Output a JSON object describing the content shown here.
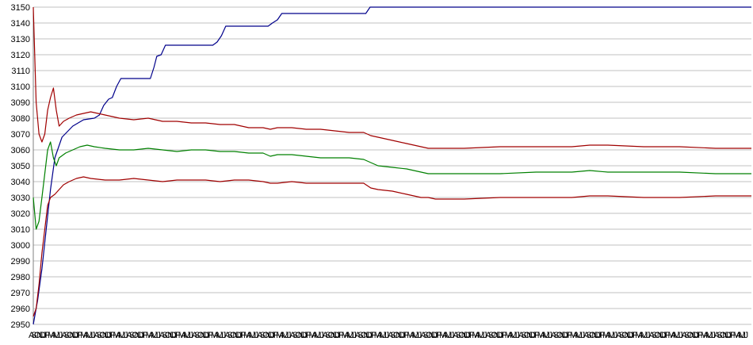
{
  "chart_data": {
    "type": "line",
    "title": "",
    "xlabel": "",
    "ylabel": "",
    "ylim": [
      2950,
      3150
    ],
    "y_ticks": [
      2950,
      2960,
      2970,
      2980,
      2990,
      3000,
      3010,
      3020,
      3030,
      3040,
      3050,
      3060,
      3070,
      3080,
      3090,
      3100,
      3110,
      3120,
      3130,
      3140,
      3150
    ],
    "grid": "horizontal",
    "legend": "none",
    "x_tick_labels": [
      "A",
      "S",
      "O",
      "N",
      "D",
      "J",
      "F",
      "M",
      "A",
      "M",
      "J",
      "J",
      "A",
      "S",
      "O",
      "N",
      "D",
      "J",
      "F",
      "M",
      "A",
      "M",
      "J",
      "J",
      "A",
      "S",
      "O",
      "N",
      "D",
      "J",
      "F",
      "M",
      "A",
      "M",
      "J",
      "J",
      "A",
      "S",
      "O",
      "N",
      "D",
      "J",
      "F",
      "M",
      "A",
      "M",
      "J",
      "J",
      "A",
      "S",
      "O",
      "N",
      "D",
      "J",
      "F",
      "M",
      "A",
      "M",
      "J",
      "J",
      "A",
      "S",
      "O",
      "N",
      "D",
      "J",
      "F",
      "M",
      "A",
      "M",
      "J",
      "J",
      "A",
      "S",
      "O",
      "N",
      "D",
      "J",
      "F",
      "M",
      "A",
      "M",
      "J",
      "J",
      "A",
      "S",
      "O",
      "N",
      "D",
      "J",
      "F",
      "M",
      "A",
      "M",
      "J",
      "J",
      "A",
      "S",
      "O",
      "N",
      "D",
      "J",
      "F",
      "M",
      "A",
      "M",
      "J",
      "J",
      "A",
      "S",
      "O",
      "N",
      "D",
      "J",
      "F",
      "M",
      "A",
      "M",
      "J",
      "J",
      "A",
      "S",
      "O",
      "N",
      "D",
      "J",
      "F",
      "M",
      "A",
      "M",
      "J",
      "J",
      "A",
      "S",
      "O",
      "N",
      "D",
      "J",
      "F",
      "M",
      "A",
      "M",
      "J",
      "J",
      "A",
      "S",
      "O",
      "N",
      "D",
      "J",
      "F",
      "M",
      "A",
      "M",
      "J",
      "J",
      "A",
      "S",
      "O",
      "N",
      "D",
      "J",
      "F",
      "M",
      "A",
      "M",
      "J",
      "J",
      "A",
      "S",
      "O",
      "N",
      "D",
      "J",
      "F",
      "M",
      "A",
      "M",
      "J",
      "J",
      "A",
      "S",
      "O",
      "N",
      "D",
      "J",
      "F",
      "M",
      "A",
      "M",
      "J",
      "J",
      "A",
      "S",
      "O",
      "N",
      "D",
      "J",
      "F",
      "M",
      "A",
      "M",
      "J",
      "J",
      "A",
      "S",
      "O",
      "N",
      "D",
      "J",
      "F",
      "M",
      "A",
      "M",
      "J",
      "J",
      "A",
      "S",
      "O",
      "N",
      "D",
      "J",
      "F",
      "M",
      "A",
      "M",
      "J",
      "J",
      "A",
      "S",
      "O",
      "N",
      "D",
      "J",
      "F",
      "M",
      "A",
      "M",
      "J",
      "J",
      "A",
      "S",
      "O",
      "N",
      "D",
      "J",
      "F",
      "M",
      "A",
      "M",
      "J",
      "J",
      "A",
      "S",
      "O",
      "N",
      "D",
      "J",
      "F",
      "M",
      "A",
      "M",
      "J",
      "J"
    ],
    "x_range": [
      0,
      100
    ],
    "series": [
      {
        "color": "#00008b",
        "points": [
          [
            0,
            2950
          ],
          [
            0.6,
            2965
          ],
          [
            1.2,
            2985
          ],
          [
            1.8,
            3010
          ],
          [
            2.4,
            3035
          ],
          [
            3.0,
            3055
          ],
          [
            4.0,
            3068
          ],
          [
            5.5,
            3075
          ],
          [
            7.0,
            3079
          ],
          [
            8.5,
            3080
          ],
          [
            9.2,
            3082
          ],
          [
            9.8,
            3088
          ],
          [
            10.5,
            3092
          ],
          [
            11.0,
            3093
          ],
          [
            11.6,
            3100
          ],
          [
            12.2,
            3105
          ],
          [
            16.3,
            3105
          ],
          [
            16.8,
            3112
          ],
          [
            17.2,
            3119
          ],
          [
            17.8,
            3120
          ],
          [
            18.4,
            3126
          ],
          [
            25.0,
            3126
          ],
          [
            25.6,
            3128
          ],
          [
            26.2,
            3132
          ],
          [
            26.8,
            3138
          ],
          [
            32.7,
            3138
          ],
          [
            33.3,
            3140
          ],
          [
            34.0,
            3142
          ],
          [
            34.6,
            3146
          ],
          [
            46.3,
            3146
          ],
          [
            46.9,
            3150
          ],
          [
            100,
            3150
          ]
        ]
      },
      {
        "color": "#a00000",
        "points": [
          [
            0,
            3150
          ],
          [
            0.4,
            3090
          ],
          [
            0.8,
            3070
          ],
          [
            1.2,
            3065
          ],
          [
            1.6,
            3070
          ],
          [
            2.0,
            3085
          ],
          [
            2.4,
            3093
          ],
          [
            2.8,
            3099
          ],
          [
            3.2,
            3085
          ],
          [
            3.6,
            3075
          ],
          [
            4.2,
            3078
          ],
          [
            5.0,
            3080
          ],
          [
            6.0,
            3082
          ],
          [
            7.0,
            3083
          ],
          [
            8.0,
            3084
          ],
          [
            9.0,
            3083
          ],
          [
            10.0,
            3082
          ],
          [
            12.0,
            3080
          ],
          [
            14.0,
            3079
          ],
          [
            16.0,
            3080
          ],
          [
            18.0,
            3078
          ],
          [
            20.0,
            3078
          ],
          [
            22.0,
            3077
          ],
          [
            24.0,
            3077
          ],
          [
            26.0,
            3076
          ],
          [
            28.0,
            3076
          ],
          [
            30.0,
            3074
          ],
          [
            32.0,
            3074
          ],
          [
            33.0,
            3073
          ],
          [
            34.0,
            3074
          ],
          [
            36.0,
            3074
          ],
          [
            38.0,
            3073
          ],
          [
            40.0,
            3073
          ],
          [
            42.0,
            3072
          ],
          [
            44.0,
            3071
          ],
          [
            46.0,
            3071
          ],
          [
            47.0,
            3069
          ],
          [
            48.0,
            3068
          ],
          [
            50.0,
            3066
          ],
          [
            52.0,
            3064
          ],
          [
            54.0,
            3062
          ],
          [
            55.0,
            3061
          ],
          [
            56.0,
            3061
          ],
          [
            60.0,
            3061
          ],
          [
            65.0,
            3062
          ],
          [
            70.0,
            3062
          ],
          [
            75.0,
            3062
          ],
          [
            77.5,
            3063
          ],
          [
            80.0,
            3063
          ],
          [
            85.0,
            3062
          ],
          [
            90.0,
            3062
          ],
          [
            95.0,
            3061
          ],
          [
            100,
            3061
          ]
        ]
      },
      {
        "color": "#008000",
        "points": [
          [
            0,
            3030
          ],
          [
            0.4,
            3010
          ],
          [
            0.8,
            3015
          ],
          [
            1.2,
            3030
          ],
          [
            1.6,
            3045
          ],
          [
            2.0,
            3060
          ],
          [
            2.4,
            3065
          ],
          [
            2.8,
            3055
          ],
          [
            3.2,
            3050
          ],
          [
            3.6,
            3055
          ],
          [
            4.5,
            3058
          ],
          [
            5.5,
            3060
          ],
          [
            6.5,
            3062
          ],
          [
            7.5,
            3063
          ],
          [
            8.5,
            3062
          ],
          [
            10.0,
            3061
          ],
          [
            12.0,
            3060
          ],
          [
            14.0,
            3060
          ],
          [
            16.0,
            3061
          ],
          [
            18.0,
            3060
          ],
          [
            20.0,
            3059
          ],
          [
            22.0,
            3060
          ],
          [
            24.0,
            3060
          ],
          [
            26.0,
            3059
          ],
          [
            28.0,
            3059
          ],
          [
            30.0,
            3058
          ],
          [
            32.0,
            3058
          ],
          [
            33.0,
            3056
          ],
          [
            34.0,
            3057
          ],
          [
            36.0,
            3057
          ],
          [
            38.0,
            3056
          ],
          [
            40.0,
            3055
          ],
          [
            42.0,
            3055
          ],
          [
            44.0,
            3055
          ],
          [
            46.0,
            3054
          ],
          [
            47.0,
            3052
          ],
          [
            48.0,
            3050
          ],
          [
            50.0,
            3049
          ],
          [
            52.0,
            3048
          ],
          [
            54.0,
            3046
          ],
          [
            55.0,
            3045
          ],
          [
            56.0,
            3045
          ],
          [
            60.0,
            3045
          ],
          [
            65.0,
            3045
          ],
          [
            70.0,
            3046
          ],
          [
            75.0,
            3046
          ],
          [
            77.5,
            3047
          ],
          [
            80.0,
            3046
          ],
          [
            85.0,
            3046
          ],
          [
            90.0,
            3046
          ],
          [
            95.0,
            3045
          ],
          [
            100,
            3045
          ]
        ]
      },
      {
        "color": "#a00000",
        "points": [
          [
            0,
            2955
          ],
          [
            0.4,
            2960
          ],
          [
            0.8,
            2975
          ],
          [
            1.2,
            2995
          ],
          [
            1.6,
            3010
          ],
          [
            2.0,
            3025
          ],
          [
            2.4,
            3030
          ],
          [
            3.0,
            3032
          ],
          [
            3.6,
            3035
          ],
          [
            4.2,
            3038
          ],
          [
            5.0,
            3040
          ],
          [
            6.0,
            3042
          ],
          [
            7.0,
            3043
          ],
          [
            8.0,
            3042
          ],
          [
            10.0,
            3041
          ],
          [
            12.0,
            3041
          ],
          [
            14.0,
            3042
          ],
          [
            16.0,
            3041
          ],
          [
            18.0,
            3040
          ],
          [
            20.0,
            3041
          ],
          [
            22.0,
            3041
          ],
          [
            24.0,
            3041
          ],
          [
            26.0,
            3040
          ],
          [
            28.0,
            3041
          ],
          [
            30.0,
            3041
          ],
          [
            32.0,
            3040
          ],
          [
            33.0,
            3039
          ],
          [
            34.0,
            3039
          ],
          [
            36.0,
            3040
          ],
          [
            38.0,
            3039
          ],
          [
            40.0,
            3039
          ],
          [
            42.0,
            3039
          ],
          [
            44.0,
            3039
          ],
          [
            46.0,
            3039
          ],
          [
            47.0,
            3036
          ],
          [
            48.0,
            3035
          ],
          [
            50.0,
            3034
          ],
          [
            52.0,
            3032
          ],
          [
            54.0,
            3030
          ],
          [
            55.0,
            3030
          ],
          [
            56.0,
            3029
          ],
          [
            60.0,
            3029
          ],
          [
            65.0,
            3030
          ],
          [
            70.0,
            3030
          ],
          [
            75.0,
            3030
          ],
          [
            77.5,
            3031
          ],
          [
            80.0,
            3031
          ],
          [
            85.0,
            3030
          ],
          [
            90.0,
            3030
          ],
          [
            95.0,
            3031
          ],
          [
            100,
            3031
          ]
        ]
      }
    ]
  }
}
